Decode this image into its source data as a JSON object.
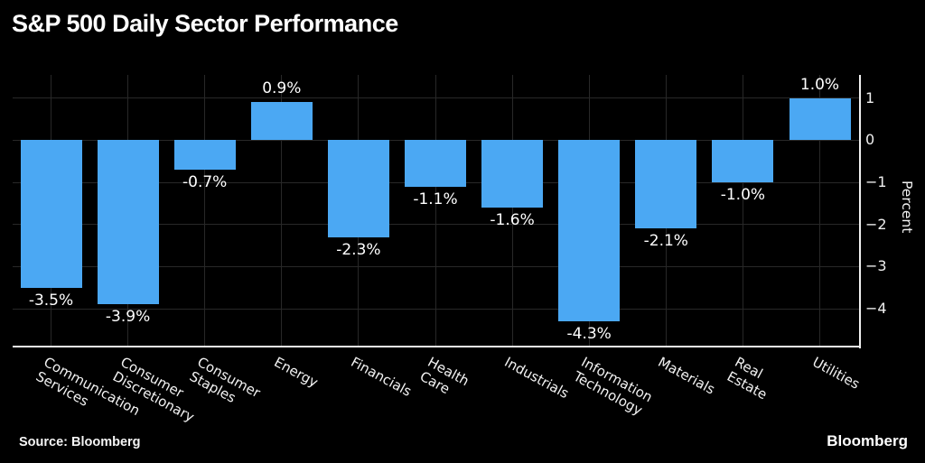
{
  "title": "S&P 500 Daily Sector Performance",
  "source": "Source: Bloomberg",
  "brand": "Bloomberg",
  "colors": {
    "background": "#000000",
    "bar": "#4BA8F3",
    "grid": "#282828",
    "axis": "#F0F0F0",
    "text": "#FFFFFF"
  },
  "chart_data": {
    "type": "bar",
    "title": "S&P 500 Daily Sector Performance",
    "categories": [
      "Communication\nServices",
      "Consumer\nDiscretionary",
      "Consumer\nStaples",
      "Energy",
      "Financials",
      "Health\nCare",
      "Industrials",
      "Information\nTechnology",
      "Materials",
      "Real\nEstate",
      "Utilities"
    ],
    "values": [
      -3.5,
      -3.9,
      -0.7,
      0.9,
      -2.3,
      -1.1,
      -1.6,
      -4.3,
      -2.1,
      -1.0,
      1.0
    ],
    "bar_labels": [
      "-3.5%",
      "-3.9%",
      "-0.7%",
      "0.9%",
      "-2.3%",
      "-1.1%",
      "-1.6%",
      "-4.3%",
      "-2.1%",
      "-1.0%",
      "1.0%"
    ],
    "xlabel": "",
    "ylabel": "Percent",
    "yticks": [
      1,
      0,
      -1,
      -2,
      -3,
      -4
    ],
    "ytick_labels": [
      "1",
      "0",
      "−1",
      "−2",
      "−3",
      "−4"
    ],
    "ylim": [
      -4.9,
      1.55
    ],
    "grid": true,
    "legend": false,
    "bar_color": "#4BA8F3"
  }
}
